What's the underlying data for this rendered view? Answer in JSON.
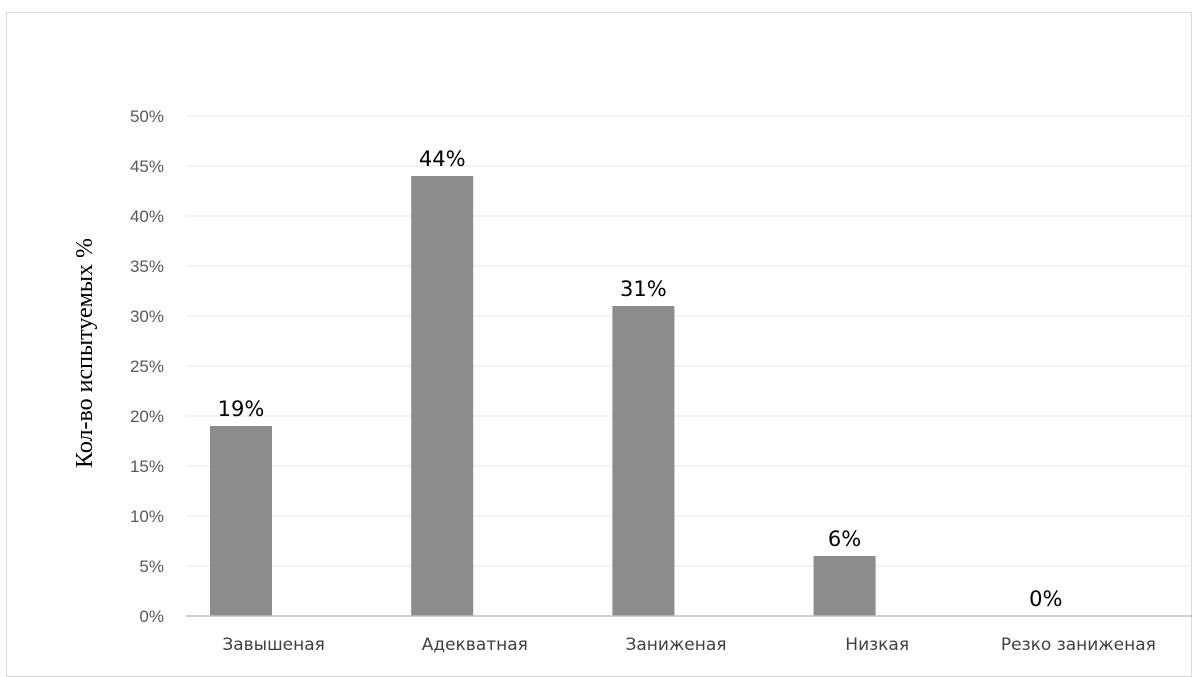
{
  "chart_data": {
    "type": "bar",
    "title": "",
    "xlabel": "",
    "ylabel": "Кол-во испытуемых %",
    "categories": [
      "Завышеная",
      "Адекватная",
      "Заниженая",
      "Низкая",
      "Резко заниженая"
    ],
    "values": [
      19,
      44,
      31,
      6,
      0
    ],
    "data_labels": [
      "19%",
      "44%",
      "31%",
      "6%",
      "0%"
    ],
    "ylim": [
      0,
      50
    ],
    "yticks": [
      0,
      5,
      10,
      15,
      20,
      25,
      30,
      35,
      40,
      45,
      50
    ],
    "ytick_labels": [
      "0%",
      "5%",
      "10%",
      "15%",
      "20%",
      "25%",
      "30%",
      "35%",
      "40%",
      "45%",
      "50%"
    ],
    "grid": true,
    "legend": "none",
    "bar_color": "#8c8c8c",
    "grid_color": "#e6e6e6"
  }
}
